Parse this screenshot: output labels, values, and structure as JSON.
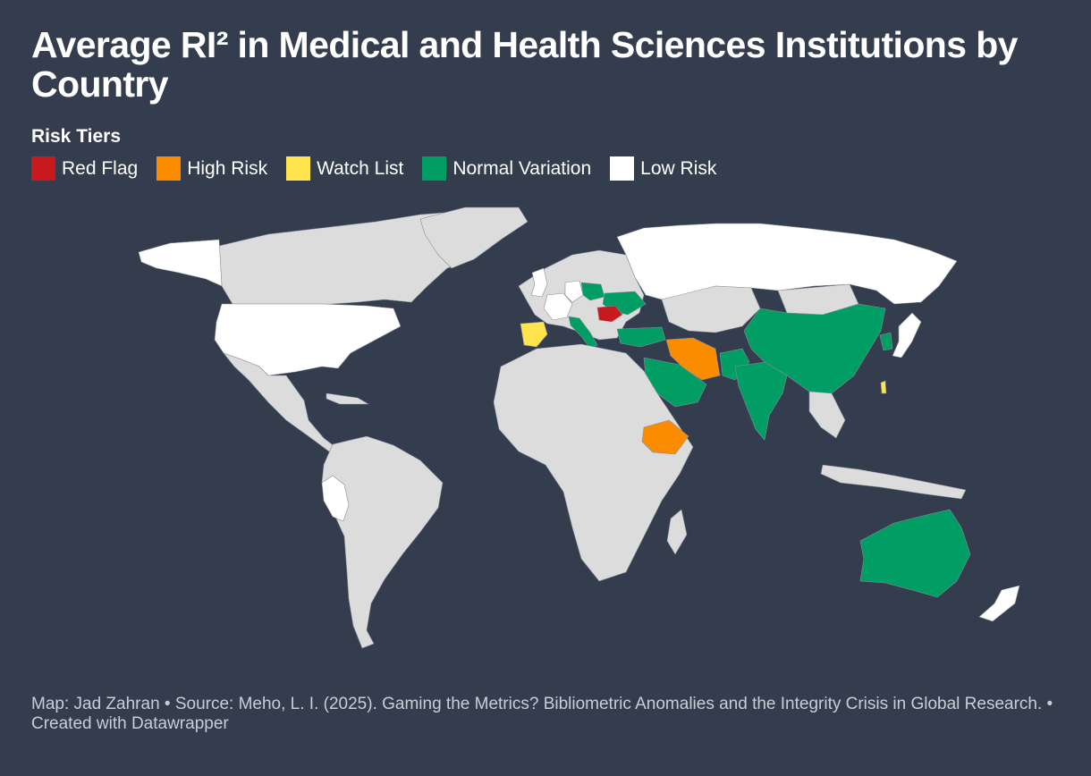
{
  "title": "Average RI² in Medical and Health Sciences Institutions by Country",
  "legend": {
    "heading": "Risk Tiers",
    "items": [
      {
        "label": "Red Flag",
        "color": "#c8191f"
      },
      {
        "label": "High Risk",
        "color": "#fb8c00"
      },
      {
        "label": "Watch List",
        "color": "#ffe44d"
      },
      {
        "label": "Normal Variation",
        "color": "#009e64"
      },
      {
        "label": "Low Risk",
        "color": "#ffffff"
      }
    ]
  },
  "colors": {
    "background": "#333d4e",
    "no_data": "#dcdcdc",
    "border": "#8a8f99"
  },
  "countries": {
    "red_flag": [
      "Romania"
    ],
    "high_risk": [
      "Iran",
      "Ethiopia"
    ],
    "watch_list": [
      "Spain",
      "Taiwan"
    ],
    "normal_variation": [
      "Italy",
      "Poland",
      "Ukraine",
      "Turkey",
      "Saudi Arabia",
      "Pakistan",
      "India",
      "China",
      "South Korea",
      "Australia"
    ],
    "low_risk": [
      "United States",
      "Canada (Alaska)",
      "Russia",
      "Japan",
      "Peru",
      "France",
      "United Kingdom",
      "Germany",
      "New Zealand"
    ]
  },
  "footer": "Map: Jad Zahran • Source: Meho, L. I. (2025). Gaming the Metrics? Bibliometric Anomalies and the Integrity Crisis in Global Research. • Created with Datawrapper"
}
